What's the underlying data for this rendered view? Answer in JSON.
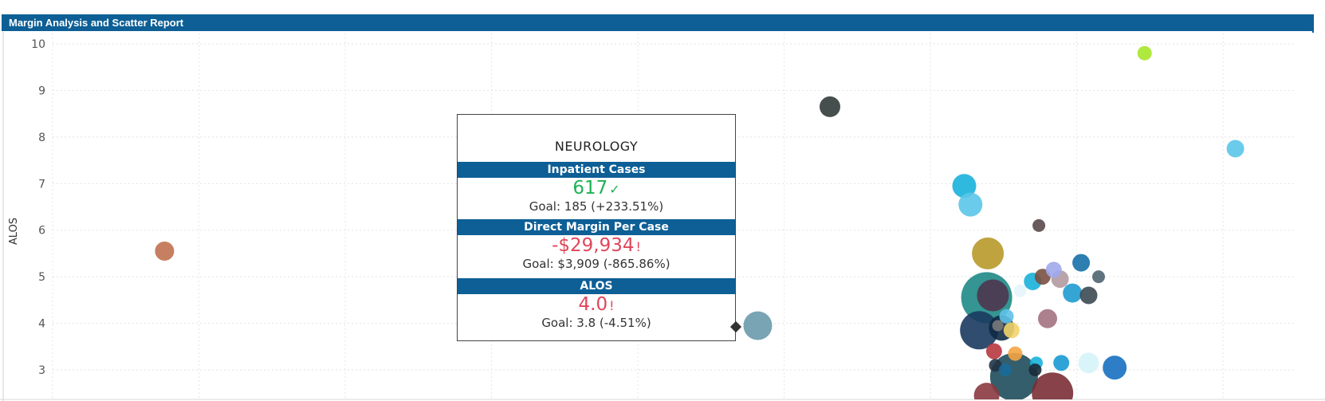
{
  "report": {
    "title": "Margin Analysis and Scatter Report"
  },
  "chart_data": {
    "type": "scatter",
    "ylabel": "ALOS",
    "yticks": [
      3,
      4,
      5,
      6,
      7,
      8,
      9,
      10
    ],
    "ylim": [
      2.45,
      10.1
    ],
    "xlim": [
      0,
      100
    ],
    "grid": true,
    "points": [
      {
        "x": 9.0,
        "y": 5.55,
        "size": 12,
        "color": "#c07150"
      },
      {
        "x": 56.7,
        "y": 3.95,
        "size": 18,
        "color": "#6a9aab"
      },
      {
        "x": 62.5,
        "y": 8.65,
        "size": 13,
        "color": "#333b3b"
      },
      {
        "x": 73.3,
        "y": 6.95,
        "size": 15,
        "color": "#1ab1db"
      },
      {
        "x": 73.8,
        "y": 6.55,
        "size": 15,
        "color": "#5bc5e8"
      },
      {
        "x": 75.2,
        "y": 5.5,
        "size": 20,
        "color": "#b8992a"
      },
      {
        "x": 75.1,
        "y": 4.55,
        "size": 32,
        "color": "#1e8a86"
      },
      {
        "x": 75.6,
        "y": 4.6,
        "size": 20,
        "color": "#4e3550"
      },
      {
        "x": 74.5,
        "y": 3.85,
        "size": 24,
        "color": "#1a3a5f"
      },
      {
        "x": 76.3,
        "y": 3.9,
        "size": 16,
        "color": "#0f2a45"
      },
      {
        "x": 77.3,
        "y": 2.85,
        "size": 30,
        "color": "#1f4d5c"
      },
      {
        "x": 76.0,
        "y": 3.95,
        "size": 7,
        "color": "#7a7a7a"
      },
      {
        "x": 76.7,
        "y": 4.15,
        "size": 9,
        "color": "#5fc1e8"
      },
      {
        "x": 77.1,
        "y": 3.85,
        "size": 10,
        "color": "#f3d36a"
      },
      {
        "x": 75.7,
        "y": 3.4,
        "size": 10,
        "color": "#b8393f"
      },
      {
        "x": 77.4,
        "y": 3.35,
        "size": 9,
        "color": "#f4a543"
      },
      {
        "x": 75.8,
        "y": 3.1,
        "size": 8,
        "color": "#223344"
      },
      {
        "x": 76.6,
        "y": 3.0,
        "size": 8,
        "color": "#1a6a9a"
      },
      {
        "x": 77.8,
        "y": 4.7,
        "size": 8,
        "color": "#e6f5fb"
      },
      {
        "x": 78.8,
        "y": 4.9,
        "size": 11,
        "color": "#1ab1db"
      },
      {
        "x": 79.6,
        "y": 5.0,
        "size": 10,
        "color": "#7a5040"
      },
      {
        "x": 79.3,
        "y": 6.1,
        "size": 8,
        "color": "#5a4a4a"
      },
      {
        "x": 80.5,
        "y": 5.15,
        "size": 10,
        "color": "#9fa8ec"
      },
      {
        "x": 81.0,
        "y": 4.95,
        "size": 11,
        "color": "#b09aa0"
      },
      {
        "x": 82.0,
        "y": 4.65,
        "size": 12,
        "color": "#1f9bd1"
      },
      {
        "x": 82.7,
        "y": 5.3,
        "size": 11,
        "color": "#1670a8"
      },
      {
        "x": 83.3,
        "y": 4.6,
        "size": 11,
        "color": "#3c4a52"
      },
      {
        "x": 84.1,
        "y": 5.0,
        "size": 8,
        "color": "#4e6570"
      },
      {
        "x": 80.0,
        "y": 4.1,
        "size": 12,
        "color": "#a37280"
      },
      {
        "x": 79.1,
        "y": 3.15,
        "size": 8,
        "color": "#1ab1db"
      },
      {
        "x": 79.0,
        "y": 3.0,
        "size": 8,
        "color": "#1a2a3a"
      },
      {
        "x": 81.1,
        "y": 3.15,
        "size": 10,
        "color": "#1a9ad1"
      },
      {
        "x": 83.3,
        "y": 3.15,
        "size": 13,
        "color": "#d6f4fa"
      },
      {
        "x": 85.4,
        "y": 3.05,
        "size": 15,
        "color": "#1670c0"
      },
      {
        "x": 80.4,
        "y": 2.5,
        "size": 26,
        "color": "#7a2f35"
      },
      {
        "x": 75.1,
        "y": 2.45,
        "size": 16,
        "color": "#8a3a40"
      },
      {
        "x": 87.8,
        "y": 9.8,
        "size": 9,
        "color": "#a6e62a"
      },
      {
        "x": 95.1,
        "y": 7.75,
        "size": 11,
        "color": "#5bc5e8"
      }
    ]
  },
  "tooltip": {
    "title": "NEUROLOGY",
    "sections": [
      {
        "label": "Inpatient Cases",
        "value": "617",
        "status": "good",
        "goal": "Goal: 185 (+233.51%)"
      },
      {
        "label": "Direct Margin Per Case",
        "value": "-$29,934",
        "status": "bad",
        "goal": "Goal: $3,909 (-865.86%)"
      },
      {
        "label": "ALOS",
        "value": "4.0",
        "status": "bad",
        "goal": "Goal: 3.8 (-4.51%)"
      }
    ],
    "good_mark": "✓",
    "bad_mark": "!"
  }
}
